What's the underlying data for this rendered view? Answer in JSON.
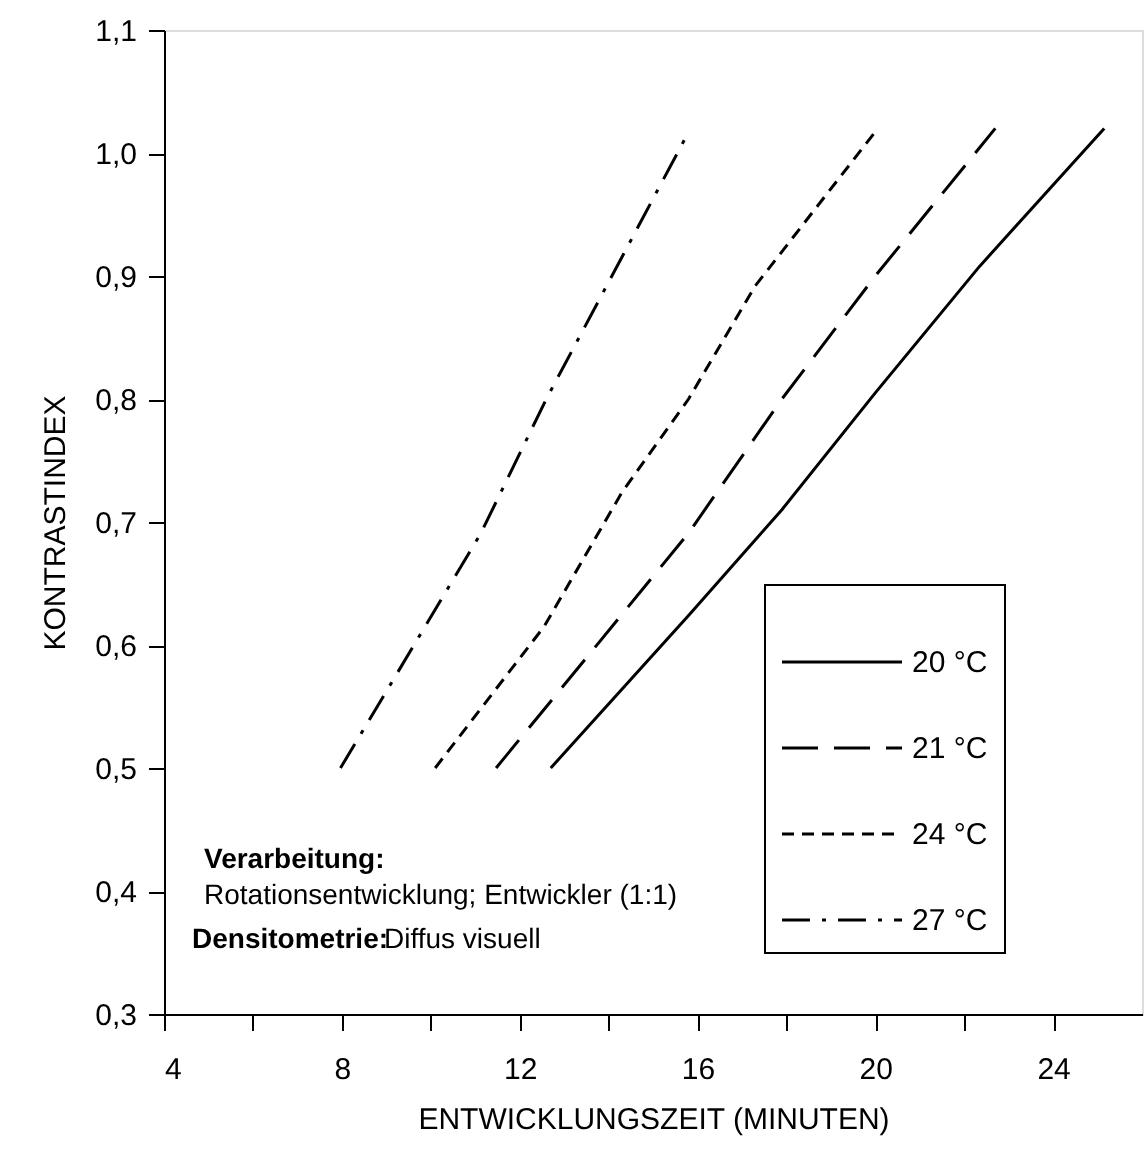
{
  "chart_data": {
    "type": "line",
    "xlabel": "ENTWICKLUNGSZEIT (MINUTEN)",
    "ylabel": "KONTRASTINDEX",
    "xlim": [
      4,
      26
    ],
    "ylim": [
      0.3,
      1.1
    ],
    "xticks": [
      4,
      {
        "value": 6,
        "label": null
      },
      8,
      {
        "value": 10,
        "label": null
      },
      12,
      {
        "value": 14,
        "label": null
      },
      16,
      {
        "value": 18,
        "label": null
      },
      20,
      {
        "value": 22,
        "label": null
      },
      24
    ],
    "yticks": [
      {
        "value": 0.3,
        "label": "0,3"
      },
      {
        "value": 0.4,
        "label": "0,4"
      },
      {
        "value": 0.5,
        "label": "0,5"
      },
      {
        "value": 0.6,
        "label": "0,6"
      },
      {
        "value": 0.7,
        "label": "0,7"
      },
      {
        "value": 0.8,
        "label": "0,8"
      },
      {
        "value": 0.9,
        "label": "0,9"
      },
      {
        "value": 1.0,
        "label": "1,0"
      },
      {
        "value": 1.1,
        "label": "1,1"
      }
    ],
    "grid": false,
    "legend": "bottom right",
    "marker": "none",
    "series": [
      {
        "name": "20 °C",
        "color": "#000000",
        "line_style": "solid",
        "x": [
          12.7,
          15.8,
          17.9,
          20.0,
          22.35,
          25.15
        ],
        "values": [
          0.5,
          0.624,
          0.71,
          0.805,
          0.908,
          1.02
        ]
      },
      {
        "name": "21 °C",
        "color": "#000000",
        "line_style": "dashed",
        "x": [
          11.47,
          15.8,
          17.9,
          20.0,
          22.7
        ],
        "values": [
          0.5,
          0.691,
          0.8,
          0.9,
          1.02
        ]
      },
      {
        "name": "24 °C",
        "color": "#000000",
        "line_style": "dotted",
        "x": [
          10.1,
          12.55,
          14.3,
          15.8,
          17.3,
          20.06
        ],
        "values": [
          0.5,
          0.615,
          0.724,
          0.8,
          0.892,
          1.02
        ]
      },
      {
        "name": "27 °C",
        "color": "#000000",
        "line_style": "dashdot",
        "x": [
          7.97,
          11.13,
          12.6,
          15.8
        ],
        "values": [
          0.5,
          0.691,
          0.8,
          1.017
        ]
      }
    ],
    "annotations": [
      "Verarbeitung:",
      "Rotationsentwicklung; Entwickler (1:1)",
      "Densitometrie:",
      "Diffus visuell"
    ]
  }
}
